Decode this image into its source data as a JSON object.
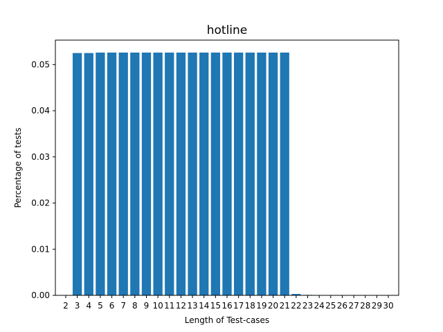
{
  "chart_data": {
    "type": "bar",
    "title": "hotline",
    "xlabel": "Length of Test-cases",
    "ylabel": "Percentage of tests",
    "categories": [
      "2",
      "3",
      "4",
      "5",
      "6",
      "7",
      "8",
      "9",
      "10",
      "11",
      "12",
      "13",
      "14",
      "15",
      "16",
      "17",
      "18",
      "19",
      "20",
      "21",
      "22",
      "23",
      "24",
      "25",
      "26",
      "27",
      "28",
      "29",
      "30"
    ],
    "values": [
      0,
      0.0525,
      0.0525,
      0.0526,
      0.0526,
      0.0526,
      0.0526,
      0.0526,
      0.0526,
      0.0526,
      0.0526,
      0.0526,
      0.0526,
      0.0526,
      0.0526,
      0.0526,
      0.0526,
      0.0526,
      0.0526,
      0.0526,
      0.0003,
      0.0001,
      0,
      0,
      0,
      0,
      0,
      0,
      0
    ],
    "ylim": [
      0,
      0.0553
    ],
    "yticks": [
      "0.00",
      "0.01",
      "0.02",
      "0.03",
      "0.04",
      "0.05"
    ],
    "grid": false,
    "legend": "none",
    "bar_color": "#1f77b4"
  }
}
